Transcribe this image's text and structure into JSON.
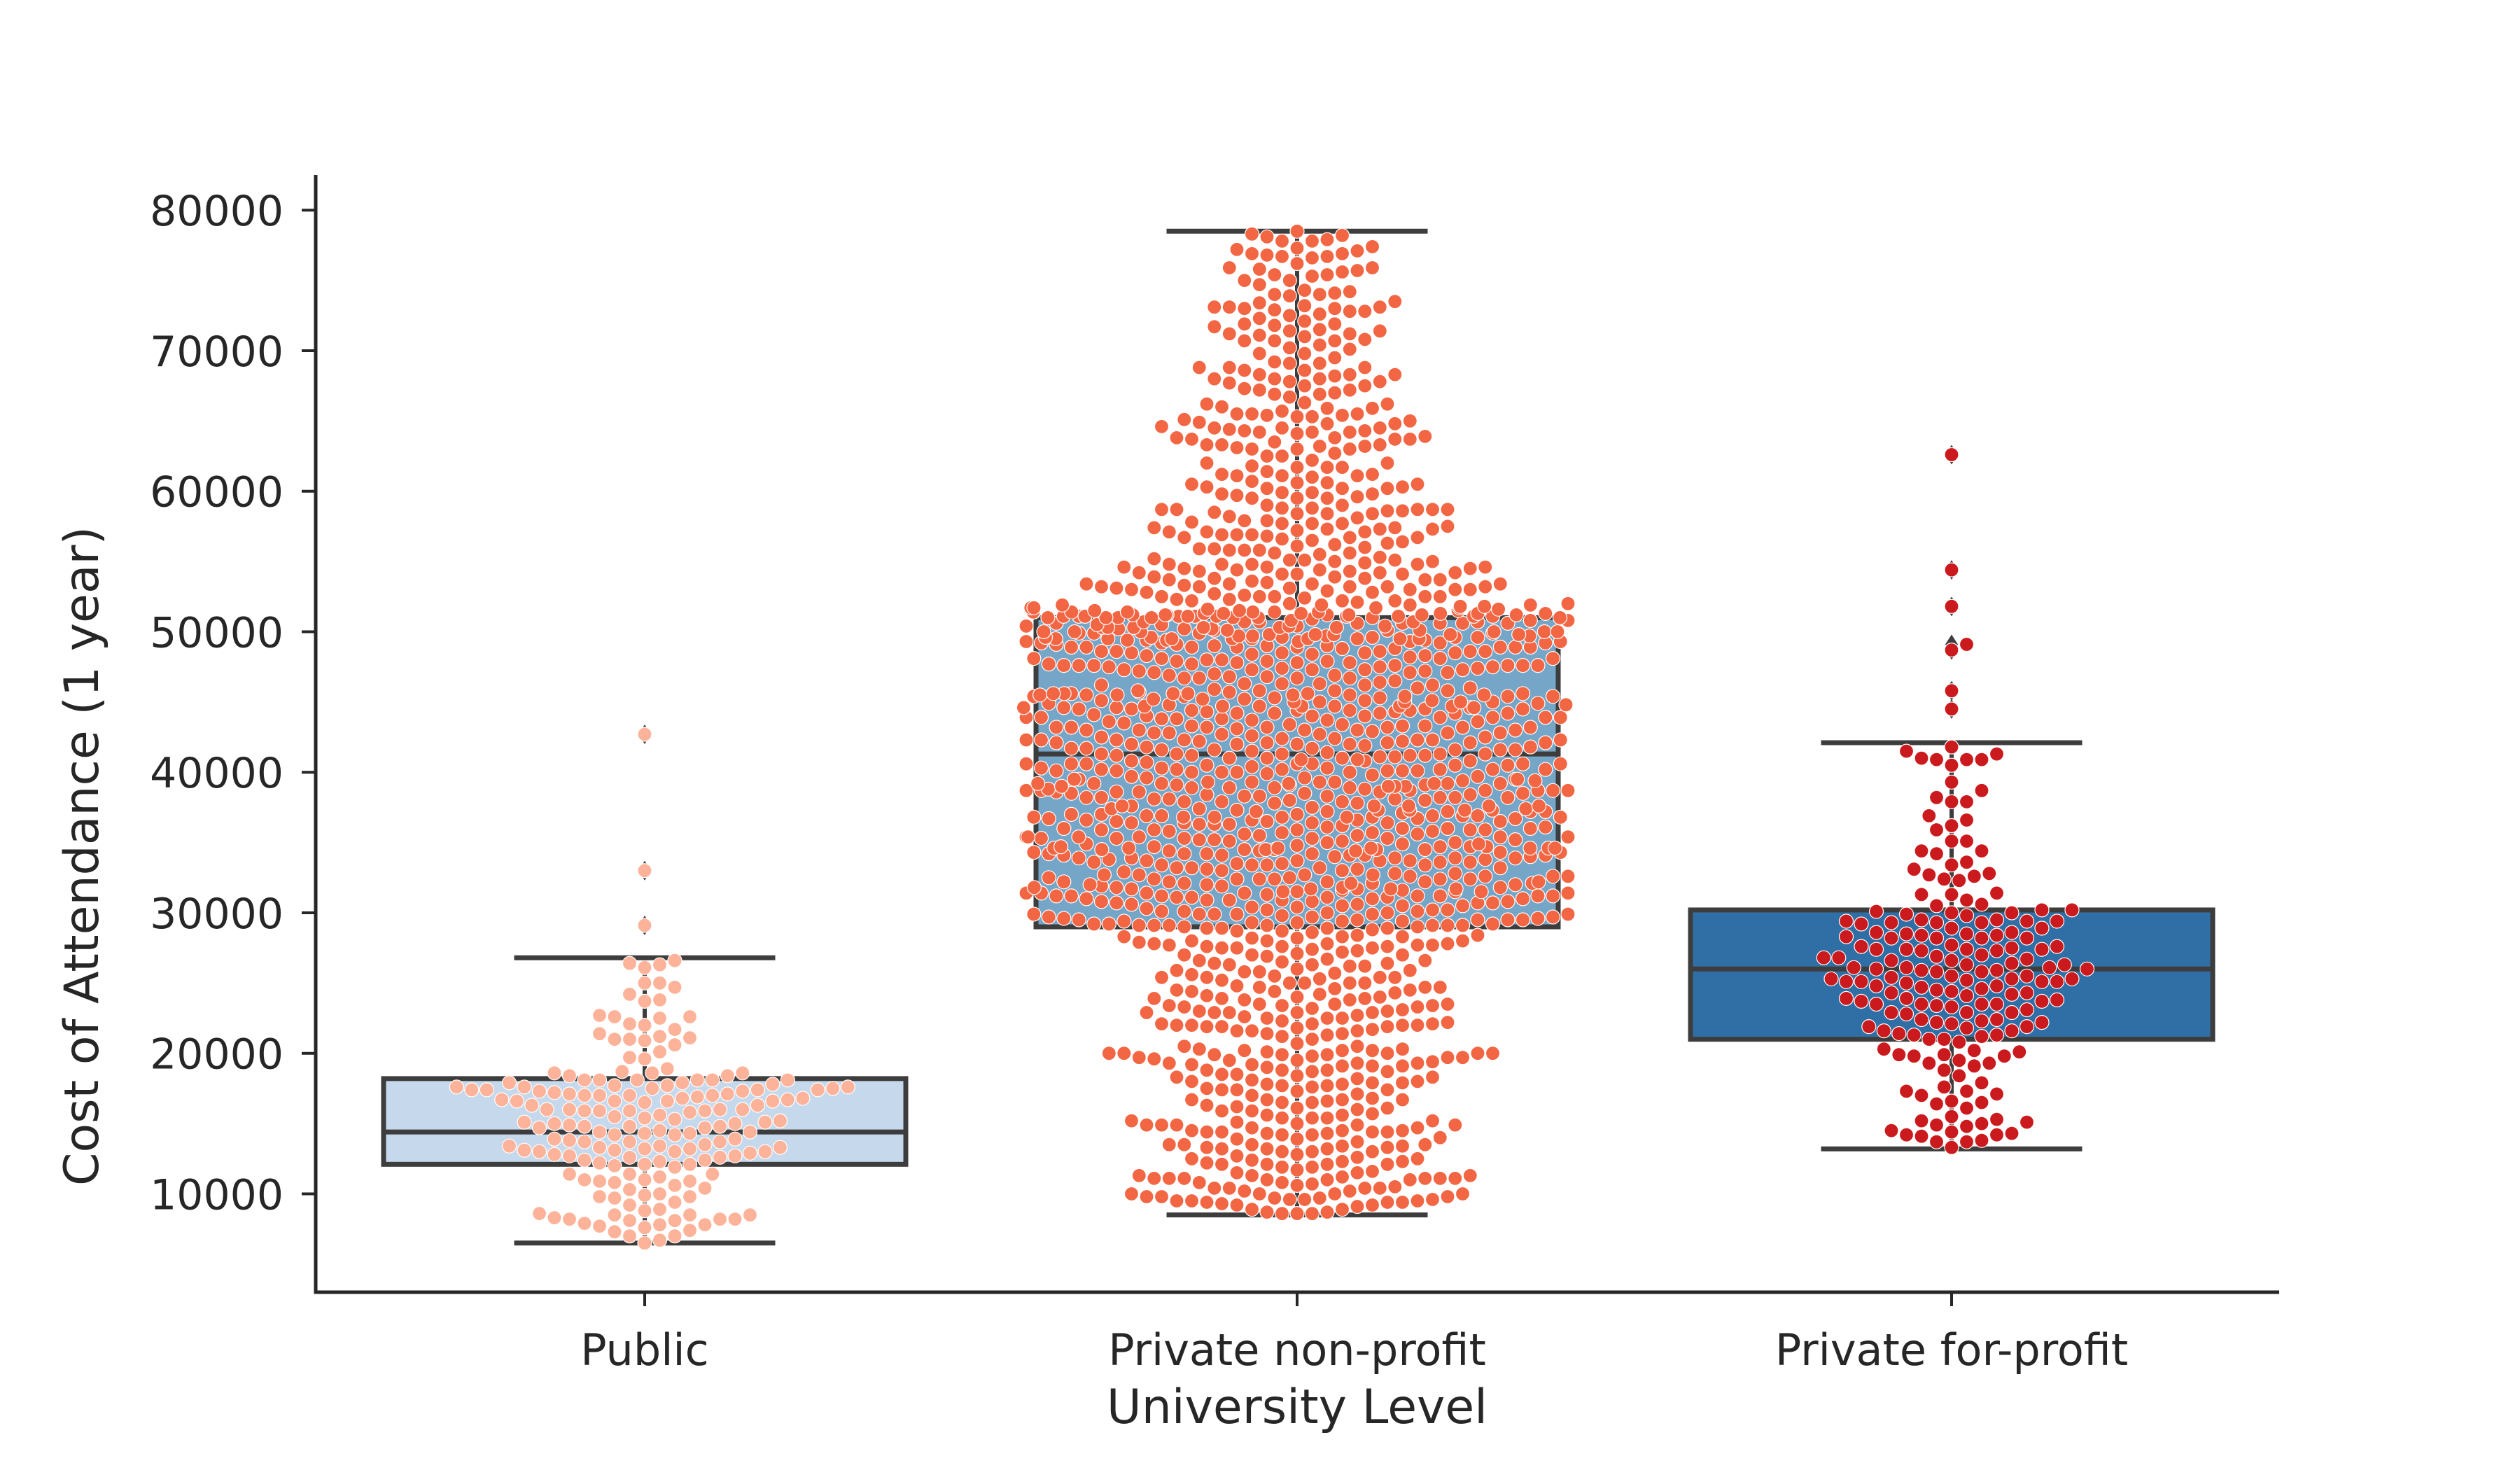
{
  "chart_data": {
    "type": "box",
    "xlabel": "University Level",
    "ylabel": "Cost of Attendance (1 year)",
    "categories": [
      "Public",
      "Private non-profit",
      "Private for-profit"
    ],
    "ylim": [
      3000,
      82500
    ],
    "yticks": [
      10000,
      20000,
      30000,
      40000,
      50000,
      60000,
      70000,
      80000
    ],
    "grid": false,
    "boxes": [
      {
        "name": "Public",
        "whisker_low": 6500,
        "q1": 12100,
        "median": 14400,
        "q3": 18200,
        "whisker_high": 26800,
        "outliers": [
          29100,
          33000,
          42700
        ],
        "box_color": "#c6d9ec",
        "point_color": "#fcb39a",
        "n_points": 180
      },
      {
        "name": "Private non-profit",
        "whisker_low": 8500,
        "q1": 29000,
        "median": 41300,
        "q3": 51000,
        "whisker_high": 78500,
        "outliers": [],
        "box_color": "#75a6c8",
        "point_color": "#f26644",
        "n_points": 1400
      },
      {
        "name": "Private for-profit",
        "whisker_low": 13200,
        "q1": 21000,
        "median": 26000,
        "q3": 30200,
        "whisker_high": 42100,
        "outliers": [
          44500,
          45800,
          48700,
          49100,
          51800,
          54400,
          62600
        ],
        "box_color": "#306fa6",
        "point_color": "#cb1a1d",
        "n_points": 190
      }
    ]
  }
}
